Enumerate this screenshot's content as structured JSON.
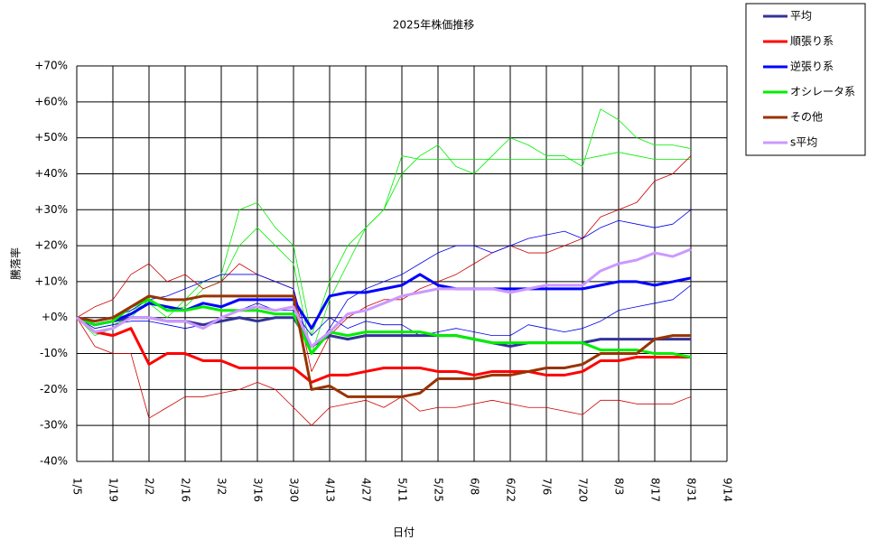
{
  "chart_data": {
    "type": "line",
    "title": "2025年株価推移",
    "x_label": "日付",
    "y_label": "騰落率",
    "categories": [
      "1/5",
      null,
      "1/19",
      null,
      "2/2",
      null,
      "2/16",
      null,
      "3/2",
      null,
      "3/16",
      null,
      "3/30",
      null,
      "4/13",
      null,
      "4/27",
      null,
      "5/11",
      null,
      "5/25",
      null,
      "6/8",
      null,
      "6/22",
      null,
      "7/6",
      null,
      "7/20",
      null,
      "8/3",
      null,
      "8/17",
      null,
      "8/31",
      null,
      "9/14"
    ],
    "ylim": [
      -40,
      70
    ],
    "yticks": [
      {
        "value": -40,
        "label": "-40%"
      },
      {
        "value": -30,
        "label": "-30%"
      },
      {
        "value": -20,
        "label": "-20%"
      },
      {
        "value": -10,
        "label": "-10%"
      },
      {
        "value": 0,
        "label": "+0%"
      },
      {
        "value": 10,
        "label": "+10%"
      },
      {
        "value": 20,
        "label": "+20%"
      },
      {
        "value": 30,
        "label": "+30%"
      },
      {
        "value": 40,
        "label": "+40%"
      },
      {
        "value": 50,
        "label": "+50%"
      },
      {
        "value": 60,
        "label": "+60%"
      },
      {
        "value": 70,
        "label": "+70%"
      }
    ],
    "grid": true,
    "legend": "outside-right",
    "thin_series": [
      {
        "color": "#00ee00",
        "values": [
          0,
          -3,
          -2,
          0,
          5,
          2,
          3,
          8,
          10,
          20,
          25,
          20,
          15,
          -10,
          5,
          15,
          25,
          30,
          45,
          44,
          44,
          44,
          44,
          44,
          44,
          44,
          44,
          44,
          44,
          45,
          46,
          45,
          44,
          44,
          44,
          null,
          null
        ]
      },
      {
        "color": "#00ee00",
        "values": [
          0,
          -5,
          -3,
          2,
          4,
          0,
          5,
          10,
          12,
          30,
          32,
          25,
          20,
          -5,
          10,
          20,
          25,
          30,
          40,
          45,
          48,
          42,
          40,
          45,
          50,
          48,
          45,
          45,
          42,
          58,
          55,
          50,
          48,
          48,
          47,
          null,
          null
        ]
      },
      {
        "color": "#cc0000",
        "values": [
          0,
          -8,
          -10,
          -10,
          -28,
          -25,
          -22,
          -22,
          -21,
          -20,
          -18,
          -20,
          -25,
          -30,
          -25,
          -24,
          -23,
          -25,
          -22,
          -26,
          -25,
          -25,
          -24,
          -23,
          -24,
          -25,
          -25,
          -26,
          -27,
          -23,
          -23,
          -24,
          -24,
          -24,
          -22,
          null,
          null
        ]
      },
      {
        "color": "#cc0000",
        "values": [
          0,
          3,
          5,
          12,
          15,
          10,
          12,
          8,
          10,
          15,
          12,
          10,
          8,
          -15,
          -5,
          0,
          3,
          5,
          5,
          8,
          10,
          12,
          15,
          18,
          20,
          18,
          18,
          20,
          22,
          28,
          30,
          32,
          38,
          40,
          45,
          null,
          null
        ]
      },
      {
        "color": "#0000ee",
        "values": [
          0,
          -1,
          0,
          2,
          5,
          6,
          8,
          10,
          12,
          12,
          12,
          10,
          8,
          -10,
          -3,
          5,
          8,
          10,
          12,
          15,
          18,
          20,
          20,
          18,
          20,
          22,
          23,
          24,
          22,
          25,
          27,
          26,
          25,
          26,
          30,
          null,
          null
        ]
      },
      {
        "color": "#0000ee",
        "values": [
          0,
          -3,
          -2,
          -1,
          -1,
          -2,
          -3,
          -2,
          0,
          2,
          4,
          2,
          2,
          -5,
          0,
          -3,
          -1,
          -2,
          -2,
          -5,
          -4,
          -3,
          -4,
          -5,
          -5,
          -2,
          -3,
          -4,
          -3,
          -1,
          2,
          3,
          4,
          5,
          9,
          null,
          null
        ]
      }
    ],
    "series": [
      {
        "name": "平均",
        "color": "#333399",
        "values": [
          0,
          -2,
          -1,
          0,
          0,
          -1,
          -1,
          -2,
          -1,
          0,
          -1,
          0,
          0,
          -8,
          -5,
          -6,
          -5,
          -5,
          -5,
          -5,
          -5,
          -5,
          -6,
          -7,
          -8,
          -7,
          -7,
          -7,
          -7,
          -6,
          -6,
          -6,
          -6,
          -6,
          -6,
          null,
          null
        ]
      },
      {
        "name": "順張り系",
        "color": "#ff0000",
        "values": [
          0,
          -4,
          -5,
          -3,
          -13,
          -10,
          -10,
          -12,
          -12,
          -14,
          -14,
          -14,
          -14,
          -18,
          -16,
          -16,
          -15,
          -14,
          -14,
          -14,
          -15,
          -15,
          -16,
          -15,
          -15,
          -15,
          -16,
          -16,
          -15,
          -12,
          -12,
          -11,
          -11,
          -11,
          -11,
          null,
          null
        ]
      },
      {
        "name": "逆張り系",
        "color": "#0000ff",
        "values": [
          0,
          -2,
          -1,
          1,
          4,
          3,
          2,
          4,
          3,
          5,
          5,
          5,
          5,
          -3,
          6,
          7,
          7,
          8,
          9,
          12,
          9,
          8,
          8,
          8,
          8,
          8,
          8,
          8,
          8,
          9,
          10,
          10,
          9,
          10,
          11,
          null,
          null
        ]
      },
      {
        "name": "オシレータ系",
        "color": "#00ee00",
        "values": [
          0,
          -2,
          -1,
          3,
          5,
          2,
          2,
          3,
          2,
          2,
          2,
          1,
          1,
          -10,
          -4,
          -5,
          -4,
          -4,
          -4,
          -4,
          -5,
          -5,
          -6,
          -7,
          -7,
          -7,
          -7,
          -7,
          -7,
          -9,
          -9,
          -9,
          -10,
          -10,
          -11,
          null,
          null
        ]
      },
      {
        "name": "その他",
        "color": "#993300",
        "values": [
          0,
          -1,
          0,
          3,
          6,
          5,
          5,
          6,
          6,
          6,
          6,
          6,
          6,
          -20,
          -19,
          -22,
          -22,
          -22,
          -22,
          -21,
          -17,
          -17,
          -17,
          -16,
          -16,
          -15,
          -14,
          -14,
          -13,
          -10,
          -10,
          -10,
          -6,
          -5,
          -5,
          null,
          null
        ]
      },
      {
        "name": "s平均",
        "color": "#cc99ff",
        "values": [
          0,
          -4,
          -3,
          0,
          0,
          -1,
          -1,
          -3,
          0,
          2,
          3,
          2,
          3,
          -8,
          -4,
          1,
          2,
          4,
          6,
          7,
          8,
          8,
          8,
          8,
          7,
          8,
          9,
          9,
          9,
          13,
          15,
          16,
          18,
          17,
          19,
          null,
          null
        ]
      }
    ]
  }
}
